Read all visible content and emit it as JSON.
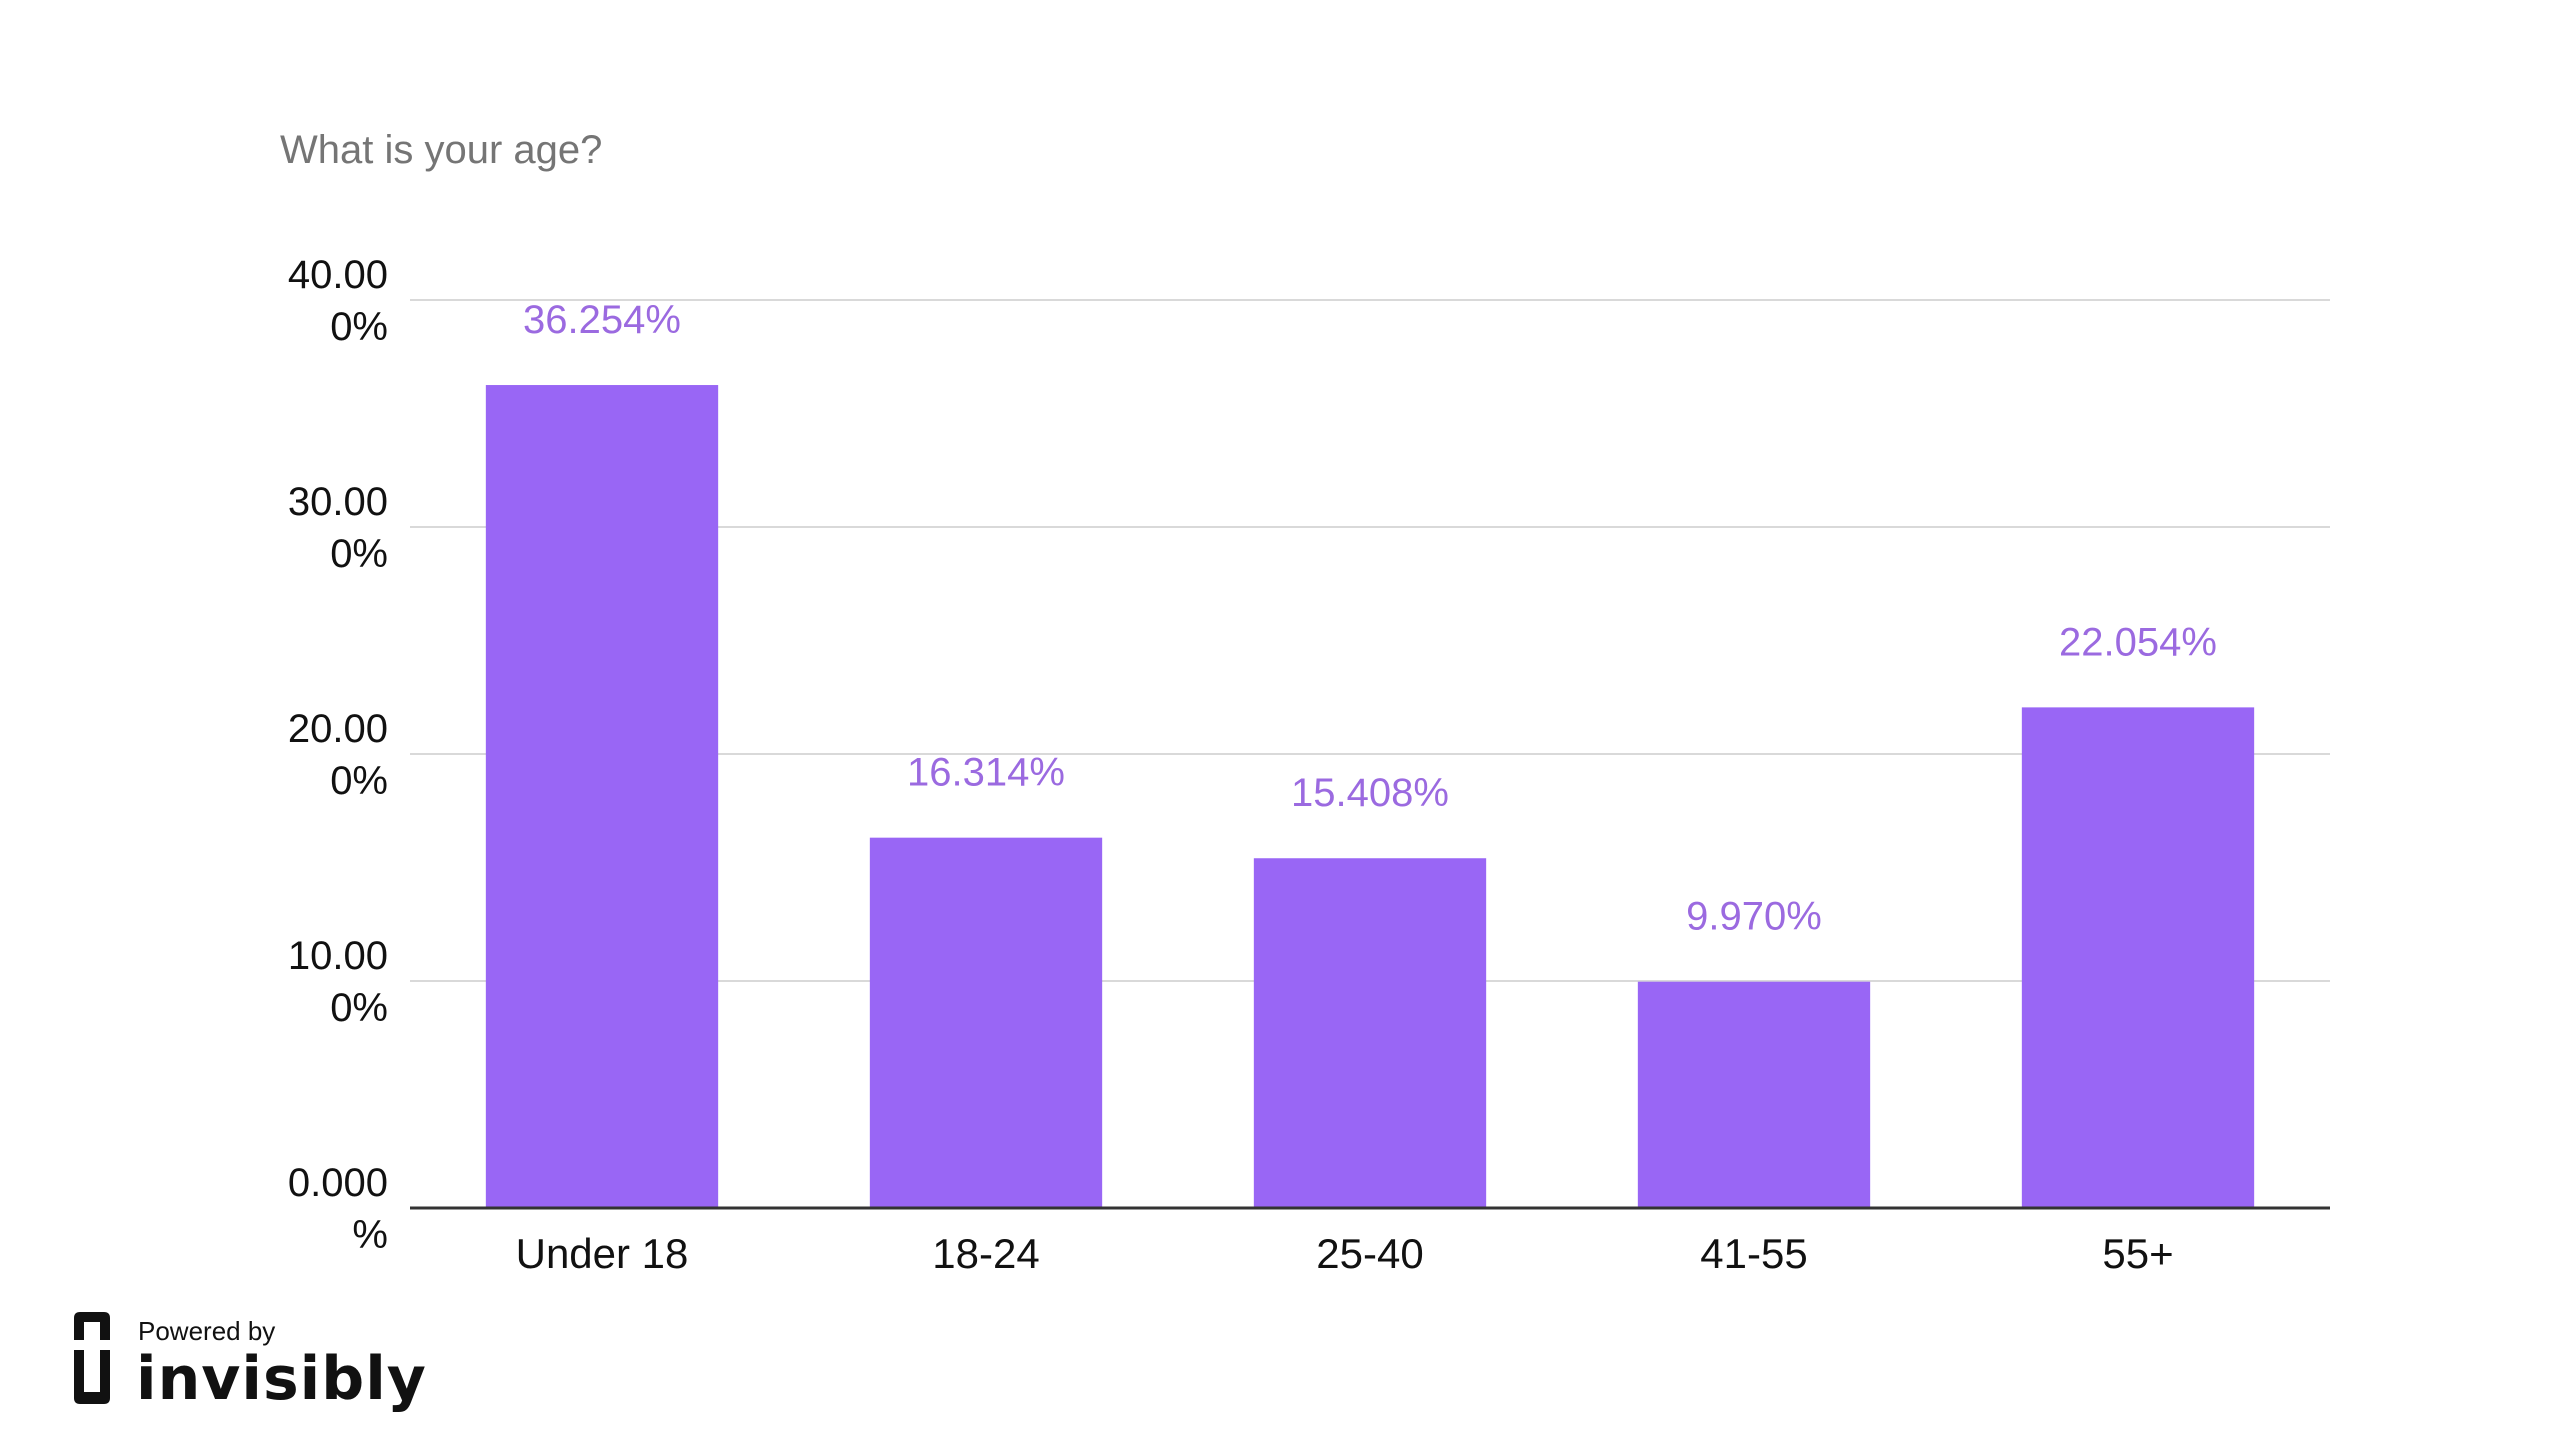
{
  "chart_data": {
    "type": "bar",
    "title": "What is your age?",
    "categories": [
      "Under 18",
      "18-24",
      "25-40",
      "41-55",
      "55+"
    ],
    "values": [
      36.254,
      16.314,
      15.408,
      9.97,
      22.054
    ],
    "value_labels": [
      "36.254%",
      "16.314%",
      "15.408%",
      "9.970%",
      "22.054%"
    ],
    "xlabel": "",
    "ylabel": "",
    "ylim": [
      0,
      40
    ],
    "yticks": [
      {
        "value": 0,
        "line1": "0.000",
        "line2": "%"
      },
      {
        "value": 10,
        "line1": "10.00",
        "line2": "0%"
      },
      {
        "value": 20,
        "line1": "20.00",
        "line2": "0%"
      },
      {
        "value": 30,
        "line1": "30.00",
        "line2": "0%"
      },
      {
        "value": 40,
        "line1": "40.00",
        "line2": "0%"
      }
    ],
    "grid": true,
    "bar_color": "#9966f5",
    "label_color": "#9b6ae0",
    "grid_color": "#d9d9d9",
    "axis_color": "#333333"
  },
  "branding": {
    "powered_by": "Powered by",
    "name": "invisibly",
    "logo_icon": "invisibly-logo-icon"
  }
}
